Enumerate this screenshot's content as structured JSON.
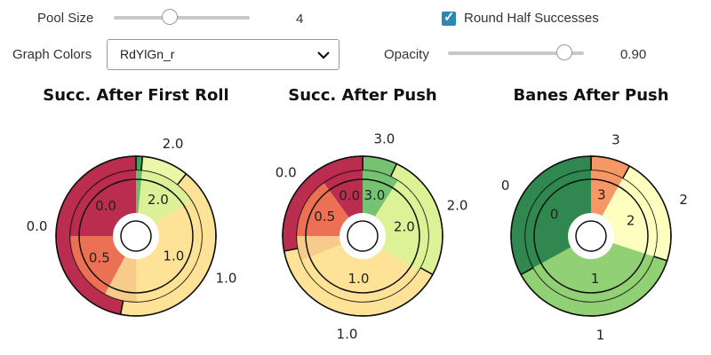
{
  "controls": {
    "pool_size": {
      "label": "Pool Size",
      "value": "4",
      "fraction": 0.4
    },
    "round_half": {
      "label": "Round Half Successes",
      "checked": true
    },
    "graph_colors": {
      "label": "Graph Colors",
      "value": "RdYlGn_r"
    },
    "opacity": {
      "label": "Opacity",
      "value": "0.90",
      "fraction": 0.9
    }
  },
  "chart_data": [
    {
      "type": "pie",
      "title": "Succ. After First Roll",
      "outer_ring": [
        {
          "label": "",
          "share": 0.013,
          "color": "#2e9a48"
        },
        {
          "label": "2.0",
          "share": 0.095,
          "color": "#e9f5a0"
        },
        {
          "label": "1.0",
          "share": 0.423,
          "color": "#fedf8c"
        },
        {
          "label": "0.0",
          "share": 0.469,
          "color": "#b3163c"
        }
      ],
      "inner_ring": [
        {
          "label": "",
          "share": 0.015,
          "color": "#5db45a"
        },
        {
          "label": "2.0",
          "share": 0.143,
          "color": "#d8ee8c"
        },
        {
          "label": "1.0",
          "share": 0.34,
          "color": "#fedf8c"
        },
        {
          "label": "",
          "share": 0.08,
          "color": "#f6c57e"
        },
        {
          "label": "0.5",
          "share": 0.172,
          "color": "#ea6140"
        },
        {
          "label": "0.0",
          "share": 0.25,
          "color": "#b3163c"
        }
      ]
    },
    {
      "type": "pie",
      "title": "Succ. After Push",
      "outer_ring": [
        {
          "label": "3.0",
          "share": 0.07,
          "color": "#66bd63"
        },
        {
          "label": "2.0",
          "share": 0.26,
          "color": "#d9ef8b"
        },
        {
          "label": "1.0",
          "share": 0.39,
          "color": "#fedf8c"
        },
        {
          "label": "0.0",
          "share": 0.28,
          "color": "#b3163c"
        }
      ],
      "inner_ring": [
        {
          "label": "3.0",
          "share": 0.09,
          "color": "#66bd63"
        },
        {
          "label": "2.0",
          "share": 0.25,
          "color": "#d9ef8b"
        },
        {
          "label": "1.0",
          "share": 0.35,
          "color": "#fedf8c"
        },
        {
          "label": "",
          "share": 0.06,
          "color": "#f6c57e"
        },
        {
          "label": "0.5",
          "share": 0.15,
          "color": "#ea6140"
        },
        {
          "label": "0.0",
          "share": 0.1,
          "color": "#b3163c"
        }
      ]
    },
    {
      "type": "pie",
      "title": "Banes After Push",
      "outer_ring": [
        {
          "label": "3",
          "share": 0.08,
          "color": "#f68c55"
        },
        {
          "label": "2",
          "share": 0.22,
          "color": "#fefeb8"
        },
        {
          "label": "1",
          "share": 0.37,
          "color": "#86cb66"
        },
        {
          "label": "0",
          "share": 0.33,
          "color": "#1a7a3c"
        }
      ],
      "inner_ring": [
        {
          "label": "3",
          "share": 0.08,
          "color": "#f68c55"
        },
        {
          "label": "2",
          "share": 0.22,
          "color": "#fefeb8"
        },
        {
          "label": "1",
          "share": 0.37,
          "color": "#86cb66"
        },
        {
          "label": "0",
          "share": 0.33,
          "color": "#1a7a3c"
        }
      ]
    }
  ]
}
